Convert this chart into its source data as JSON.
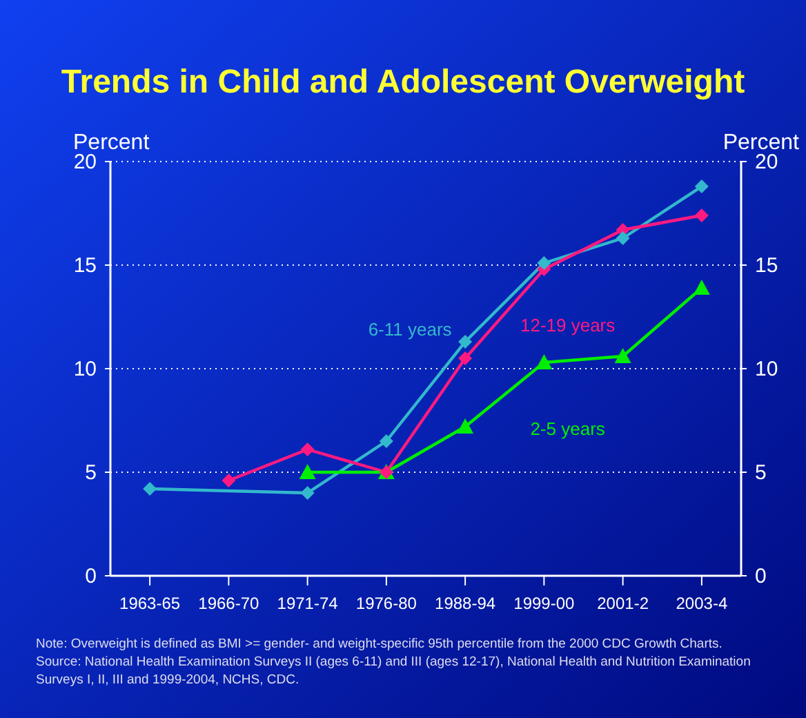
{
  "chart_data": {
    "type": "line",
    "title": "Trends in Child and Adolescent Overweight",
    "ylabel": "Percent",
    "y2label": "Percent",
    "categories": [
      "1963-65",
      "1966-70",
      "1971-74",
      "1976-80",
      "1988-94",
      "1999-00",
      "2001-2",
      "2003-4"
    ],
    "ylim": [
      0,
      20
    ],
    "yticks": [
      0,
      5,
      10,
      15,
      20
    ],
    "y2lim": [
      0,
      20
    ],
    "y2ticks": [
      0,
      5,
      10,
      15,
      20
    ],
    "grid": "y",
    "line_style": "solid",
    "series": [
      {
        "name": "6-11 years",
        "color": "#33b8cc",
        "marker": "diamond",
        "values": [
          4.2,
          null,
          4.0,
          6.5,
          11.3,
          15.1,
          16.3,
          18.8
        ]
      },
      {
        "name": "12-19 years",
        "color": "#ff1a80",
        "marker": "diamond",
        "values": [
          null,
          4.6,
          6.1,
          5.0,
          10.5,
          14.8,
          16.7,
          17.4
        ]
      },
      {
        "name": "2-5 years",
        "color": "#00ee00",
        "marker": "triangle",
        "values": [
          null,
          null,
          5.0,
          5.0,
          7.2,
          10.3,
          10.6,
          13.9
        ]
      }
    ],
    "annotations": [
      "Note: Overweight is defined as BMI >= gender- and weight-specific 95th percentile from the 2000 CDC Growth Charts.",
      "Source: National Health Examination Surveys II (ages 6-11) and III (ages 12-17), National Health and Nutrition Examination",
      "Surveys I, II, III and 1999-2004, NCHS, CDC."
    ]
  }
}
